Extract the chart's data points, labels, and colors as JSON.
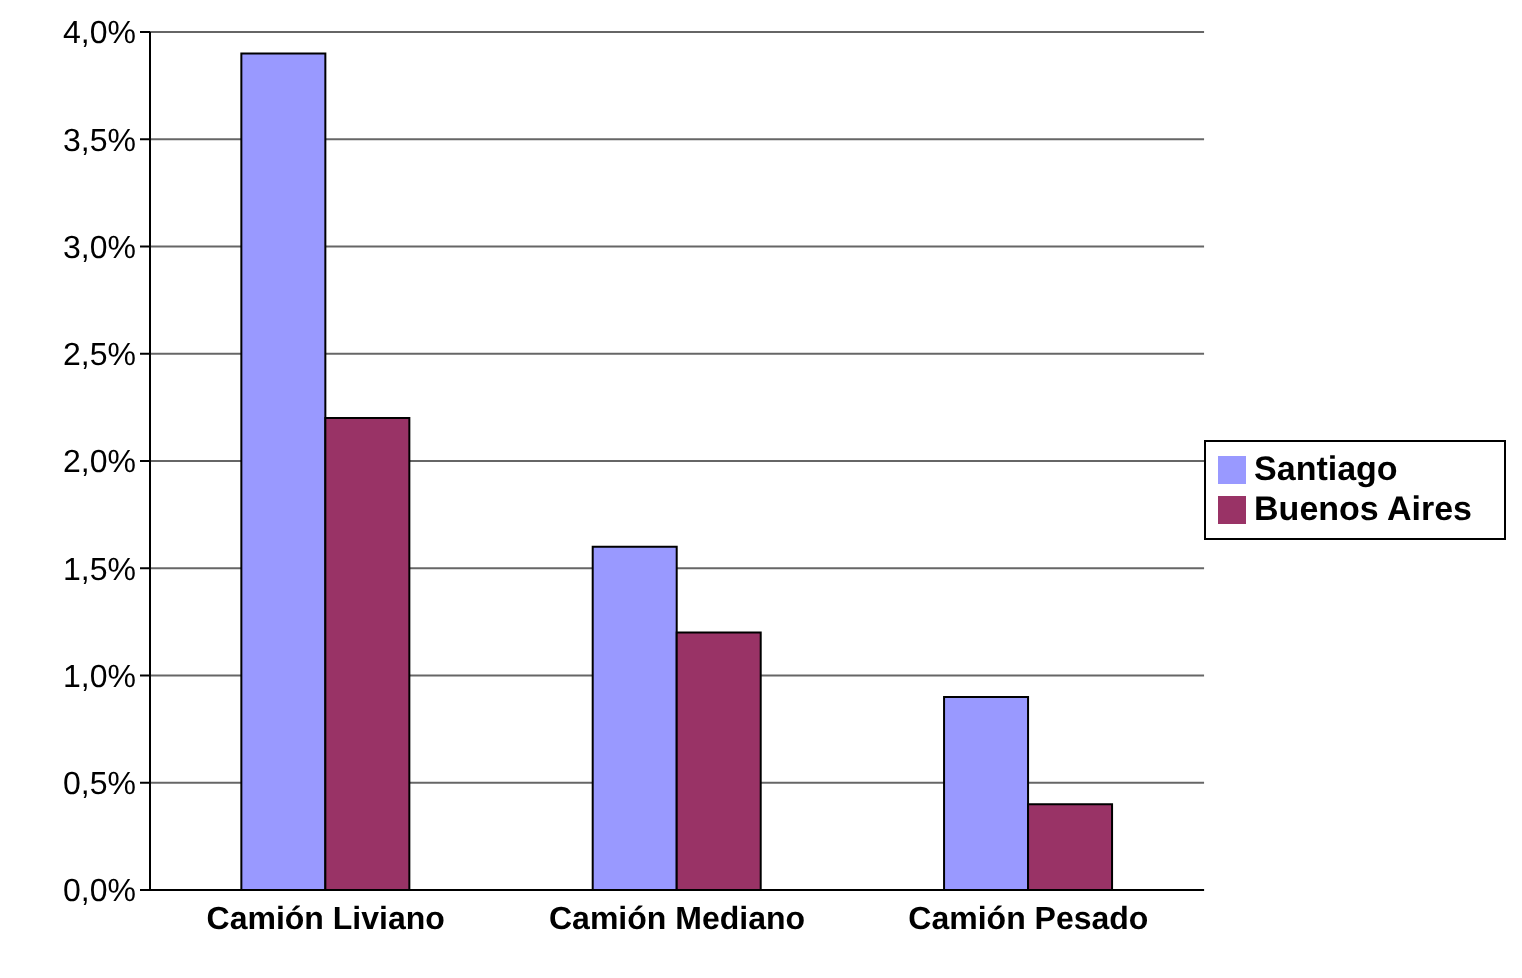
{
  "chart_data": {
    "type": "bar",
    "categories": [
      "Camión Liviano",
      "Camión Mediano",
      "Camión Pesado"
    ],
    "series": [
      {
        "name": "Santiago",
        "color": "#9999ff",
        "values": [
          3.9,
          1.6,
          0.9
        ]
      },
      {
        "name": "Buenos Aires",
        "color": "#993366",
        "values": [
          2.2,
          1.2,
          0.4
        ]
      }
    ],
    "ylim": [
      0,
      4
    ],
    "yticks": [
      {
        "value": 0,
        "label": "0,0%"
      },
      {
        "value": 0.5,
        "label": "0,5%"
      },
      {
        "value": 1,
        "label": "1,0%"
      },
      {
        "value": 1.5,
        "label": "1,5%"
      },
      {
        "value": 2,
        "label": "2,0%"
      },
      {
        "value": 2.5,
        "label": "2,5%"
      },
      {
        "value": 3,
        "label": "3,0%"
      },
      {
        "value": 3.5,
        "label": "3,5%"
      },
      {
        "value": 4,
        "label": "4,0%"
      }
    ],
    "grid": "y",
    "legend": "right"
  }
}
